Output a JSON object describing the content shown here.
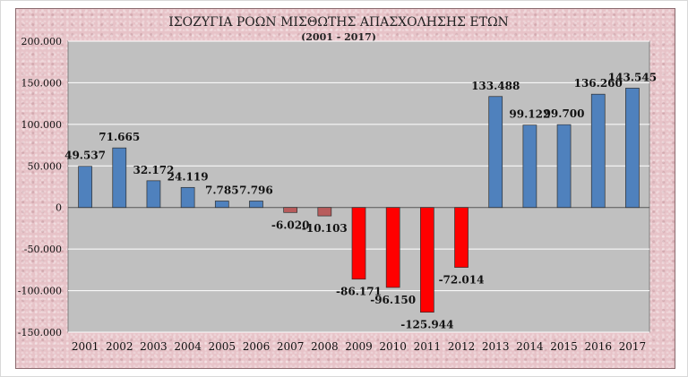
{
  "chart_data": {
    "type": "bar",
    "title": "ΙΣΟΖΥΓΙΑ ΡΟΩΝ ΜΙΣΘΩΤΗΣ ΑΠΑΣΧΟΛΗΣΗΣ ΕΤΩΝ",
    "subtitle": "(2001 - 2017)",
    "xlabel": "",
    "ylabel": "",
    "categories": [
      "2001",
      "2002",
      "2003",
      "2004",
      "2005",
      "2006",
      "2007",
      "2008",
      "2009",
      "2010",
      "2011",
      "2012",
      "2013",
      "2014",
      "2015",
      "2016",
      "2017"
    ],
    "values": [
      49537,
      71665,
      32172,
      24119,
      7785,
      7796,
      -6020,
      -10103,
      -86171,
      -96150,
      -125944,
      -72014,
      133488,
      99122,
      99700,
      136260,
      143545
    ],
    "value_labels": [
      "49.537",
      "71.665",
      "32.172",
      "24.119",
      "7.785",
      "7.796",
      "-6.020",
      "-10.103",
      "-86.171",
      "-96.150",
      "-125.944",
      "-72.014",
      "133.488",
      "99.122",
      "99.700",
      "136.260",
      "143.545"
    ],
    "colors": [
      "blue",
      "blue",
      "blue",
      "blue",
      "blue",
      "blue",
      "brown",
      "brown",
      "red",
      "red",
      "red",
      "red",
      "blue",
      "blue",
      "blue",
      "blue",
      "blue"
    ],
    "ylim": [
      -150000,
      200000
    ],
    "yticks": [
      200000,
      150000,
      100000,
      50000,
      0,
      -50000,
      -100000,
      -150000
    ],
    "ytick_labels": [
      "200.000",
      "150.000",
      "100.000",
      "50.000",
      "0",
      "-50.000",
      "-100.000",
      "-150.000"
    ],
    "grid": true,
    "legend": "none",
    "palette": {
      "blue": "#4f81bd",
      "brown": "#b85c5c",
      "red": "#ff0000",
      "plot_bg": "#c0c0c0",
      "gridline": "#ffffff"
    }
  }
}
